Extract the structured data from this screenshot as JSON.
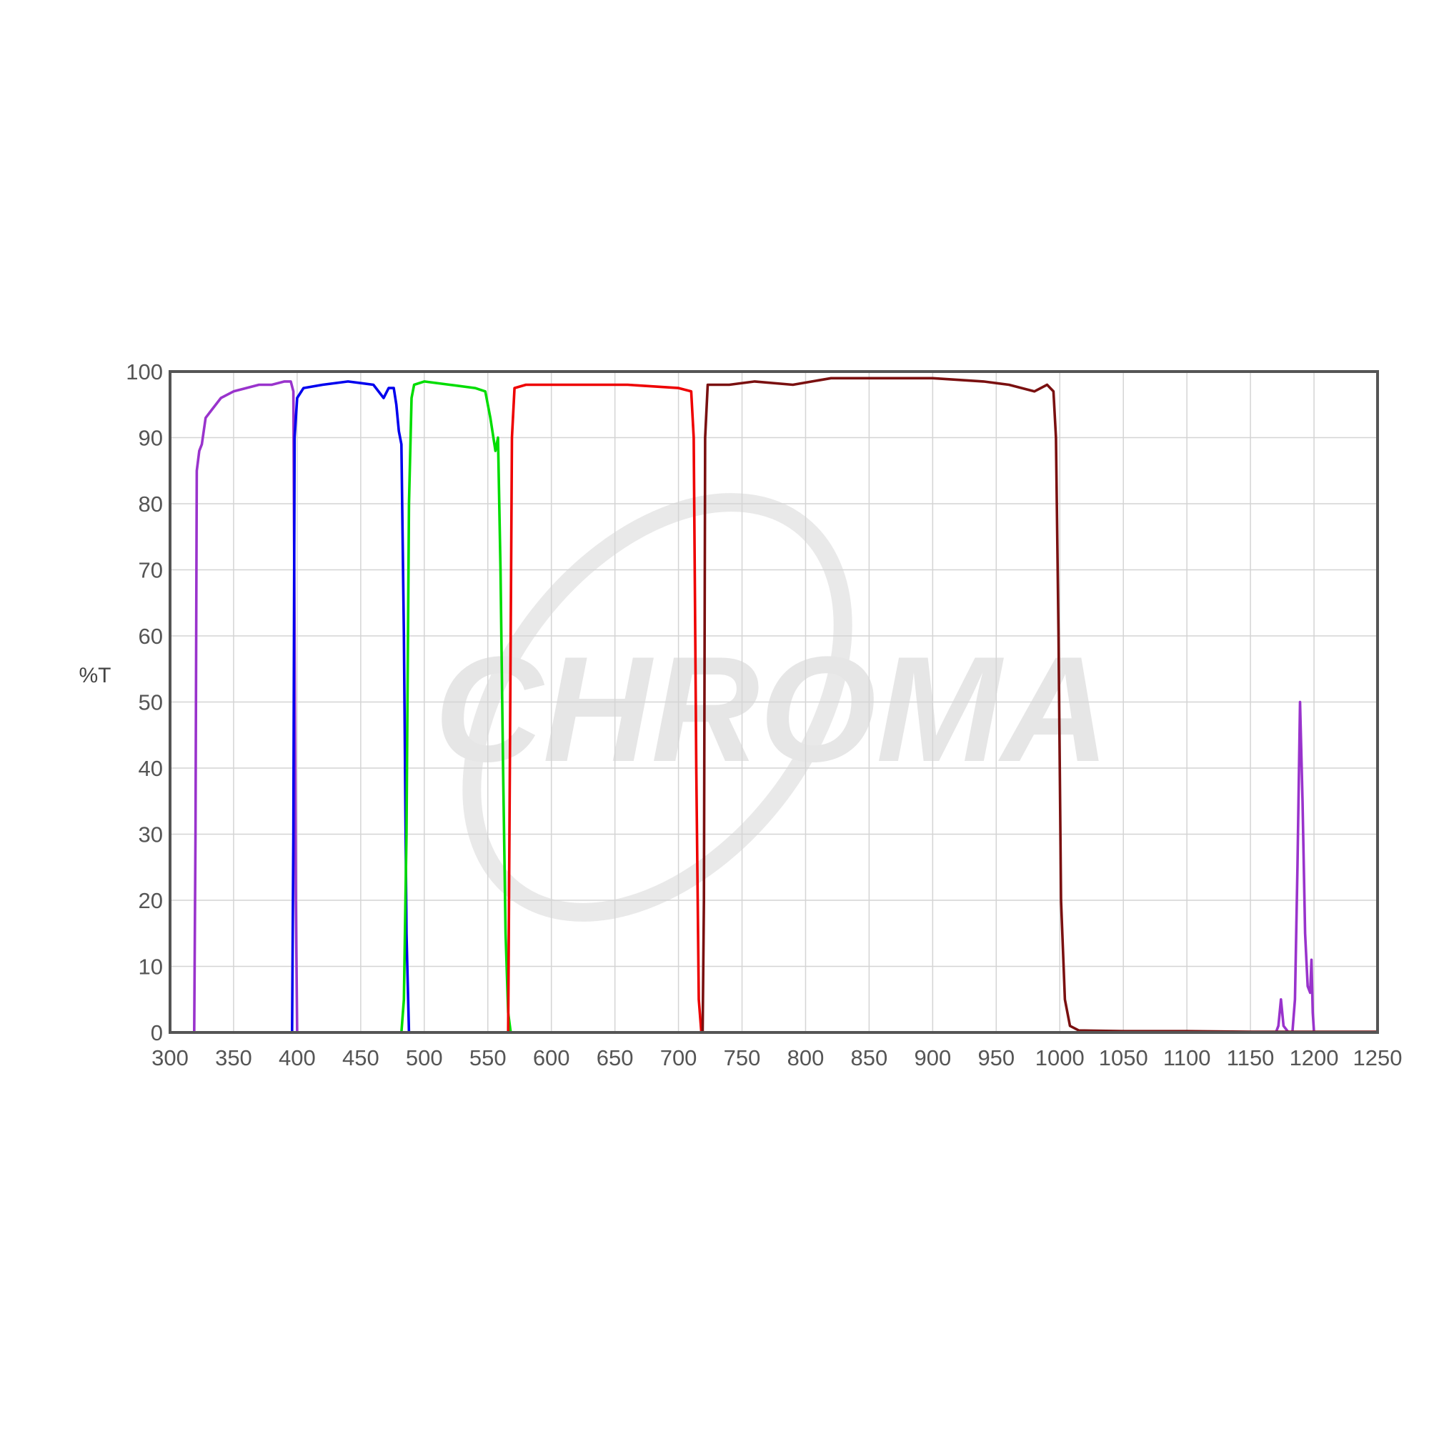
{
  "chart_data": {
    "type": "line",
    "title": "",
    "xlabel": "",
    "ylabel": "%T",
    "xlim": [
      300,
      1250
    ],
    "ylim": [
      0,
      100
    ],
    "x_ticks": [
      300,
      350,
      400,
      450,
      500,
      550,
      600,
      650,
      700,
      750,
      800,
      850,
      900,
      950,
      1000,
      1050,
      1100,
      1150,
      1200,
      1250
    ],
    "y_ticks": [
      0,
      10,
      20,
      30,
      40,
      50,
      60,
      70,
      80,
      90,
      100
    ],
    "grid": true,
    "legend": "none",
    "watermark": "CHROMA",
    "series": [
      {
        "color": "#9933cc",
        "points": [
          [
            300,
            0
          ],
          [
            319,
            0
          ],
          [
            320,
            30
          ],
          [
            321,
            85
          ],
          [
            323,
            88
          ],
          [
            325,
            89
          ],
          [
            328,
            93
          ],
          [
            332,
            94
          ],
          [
            340,
            96
          ],
          [
            350,
            97
          ],
          [
            360,
            97.5
          ],
          [
            370,
            98
          ],
          [
            380,
            98
          ],
          [
            390,
            98.5
          ],
          [
            395,
            98.5
          ],
          [
            397,
            97
          ],
          [
            398,
            60
          ],
          [
            399,
            20
          ],
          [
            400,
            0
          ],
          [
            1170,
            0
          ],
          [
            1172,
            1
          ],
          [
            1174,
            5
          ],
          [
            1176,
            1
          ],
          [
            1180,
            0
          ],
          [
            1183,
            0
          ],
          [
            1185,
            5
          ],
          [
            1187,
            25
          ],
          [
            1189,
            50
          ],
          [
            1191,
            35
          ],
          [
            1193,
            15
          ],
          [
            1195,
            7
          ],
          [
            1197,
            6
          ],
          [
            1198,
            11
          ],
          [
            1199,
            3
          ],
          [
            1200,
            0
          ]
        ]
      },
      {
        "color": "#0000ee",
        "points": [
          [
            300,
            0
          ],
          [
            396,
            0
          ],
          [
            397,
            30
          ],
          [
            398,
            90
          ],
          [
            400,
            96
          ],
          [
            405,
            97.5
          ],
          [
            420,
            98
          ],
          [
            440,
            98.5
          ],
          [
            460,
            98
          ],
          [
            468,
            96
          ],
          [
            472,
            97.5
          ],
          [
            476,
            97.5
          ],
          [
            478,
            95
          ],
          [
            480,
            91
          ],
          [
            482,
            89
          ],
          [
            484,
            60
          ],
          [
            486,
            15
          ],
          [
            488,
            0
          ],
          [
            1250,
            0
          ]
        ]
      },
      {
        "color": "#00dd00",
        "points": [
          [
            300,
            0
          ],
          [
            482,
            0
          ],
          [
            484,
            5
          ],
          [
            486,
            30
          ],
          [
            488,
            80
          ],
          [
            490,
            96
          ],
          [
            492,
            98
          ],
          [
            500,
            98.5
          ],
          [
            520,
            98
          ],
          [
            540,
            97.5
          ],
          [
            548,
            97
          ],
          [
            552,
            93
          ],
          [
            556,
            88
          ],
          [
            558,
            90
          ],
          [
            560,
            70
          ],
          [
            562,
            40
          ],
          [
            564,
            15
          ],
          [
            566,
            3
          ],
          [
            568,
            0
          ],
          [
            1250,
            0
          ]
        ]
      },
      {
        "color": "#ee0000",
        "points": [
          [
            300,
            0
          ],
          [
            566,
            0
          ],
          [
            567,
            30
          ],
          [
            569,
            90
          ],
          [
            571,
            97.5
          ],
          [
            580,
            98
          ],
          [
            620,
            98
          ],
          [
            660,
            98
          ],
          [
            700,
            97.5
          ],
          [
            710,
            97
          ],
          [
            712,
            90
          ],
          [
            714,
            40
          ],
          [
            716,
            5
          ],
          [
            718,
            0
          ],
          [
            1250,
            0
          ]
        ]
      },
      {
        "color": "#7a1010",
        "points": [
          [
            300,
            0
          ],
          [
            719,
            0
          ],
          [
            720,
            20
          ],
          [
            721,
            90
          ],
          [
            723,
            98
          ],
          [
            740,
            98
          ],
          [
            760,
            98.5
          ],
          [
            790,
            98
          ],
          [
            820,
            99
          ],
          [
            860,
            99
          ],
          [
            900,
            99
          ],
          [
            940,
            98.5
          ],
          [
            960,
            98
          ],
          [
            970,
            97.5
          ],
          [
            980,
            97
          ],
          [
            990,
            98
          ],
          [
            995,
            97
          ],
          [
            997,
            90
          ],
          [
            999,
            60
          ],
          [
            1001,
            20
          ],
          [
            1004,
            5
          ],
          [
            1008,
            1
          ],
          [
            1015,
            0.3
          ],
          [
            1050,
            0.2
          ],
          [
            1100,
            0.2
          ],
          [
            1150,
            0.1
          ],
          [
            1200,
            0.1
          ],
          [
            1250,
            0.1
          ]
        ]
      }
    ]
  }
}
